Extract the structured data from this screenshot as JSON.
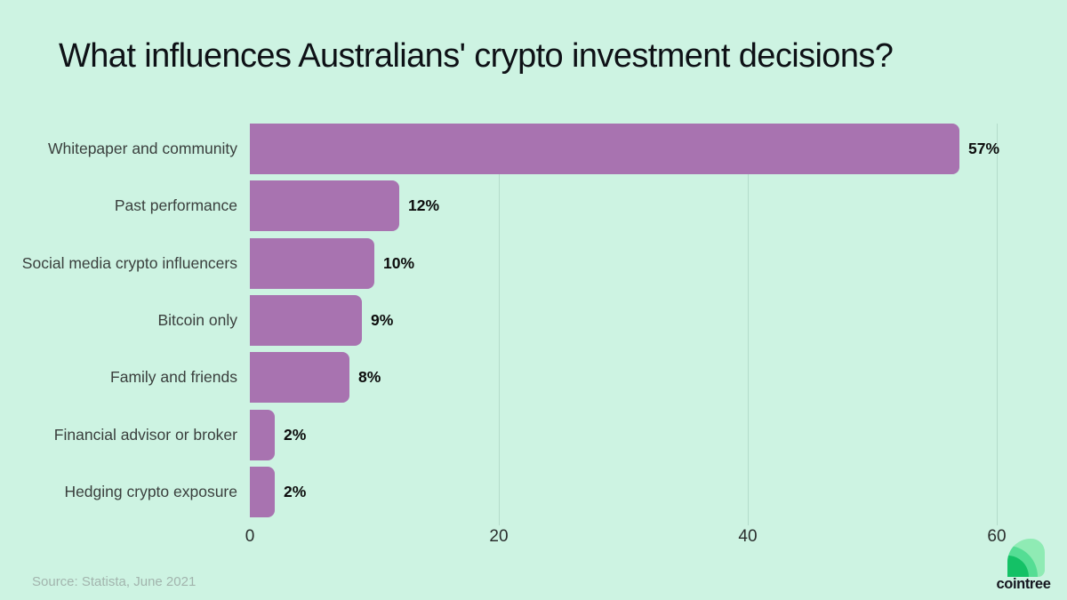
{
  "title": "What influences Australians' crypto investment decisions?",
  "source": "Source: Statista, June 2021",
  "brand": {
    "name": "cointree"
  },
  "colors": {
    "background": "#cdf3e2",
    "bar": "#a873b0",
    "gridline": "#b4dccb",
    "title_text": "#0e1116",
    "category_text": "#3a3f3d",
    "value_text": "#0d0d0d",
    "tick_text": "#2a2e2d",
    "source_text": "#a2b4ad",
    "leaf_light": "#8febb4",
    "leaf_mid": "#55dd94",
    "leaf_dark": "#14c166"
  },
  "chart_data": {
    "type": "bar",
    "orientation": "horizontal",
    "title": "What influences Australians' crypto investment decisions?",
    "categories": [
      "Whitepaper and community",
      "Past performance",
      "Social media crypto influencers",
      "Bitcoin only",
      "Family and friends",
      "Financial advisor or broker",
      "Hedging crypto exposure"
    ],
    "values": [
      57,
      12,
      10,
      9,
      8,
      2,
      2
    ],
    "value_labels": [
      "57%",
      "12%",
      "10%",
      "9%",
      "8%",
      "2%",
      "2%"
    ],
    "xlabel": "",
    "ylabel": "",
    "xlim": [
      0,
      60
    ],
    "xticks": [
      0,
      20,
      40,
      60
    ],
    "grid": "vertical",
    "legend": "none",
    "unit": "percent"
  }
}
